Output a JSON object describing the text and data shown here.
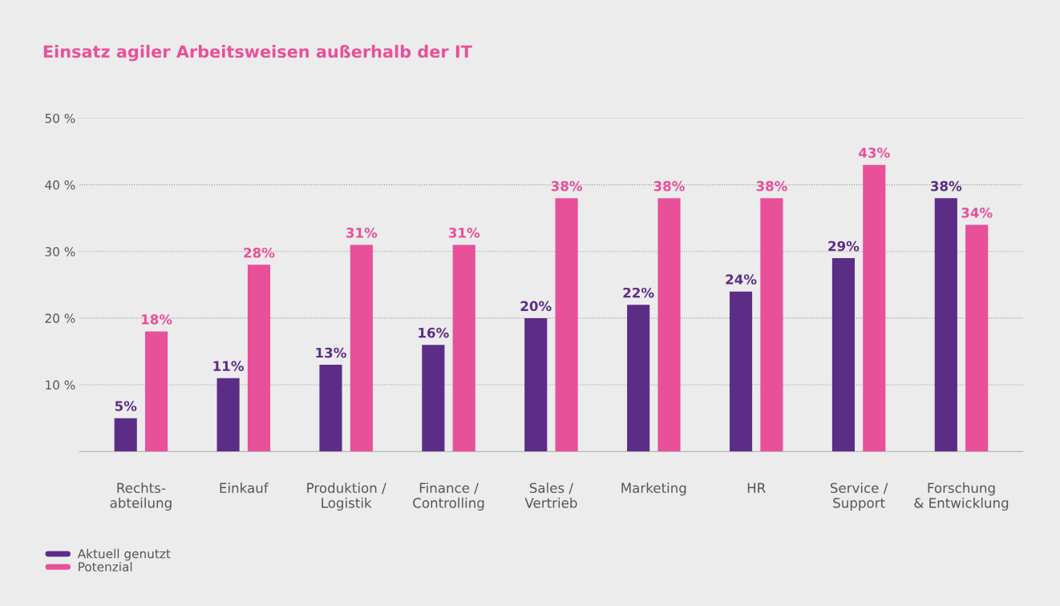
{
  "chart_data": {
    "type": "bar",
    "title": "Einsatz agiler Arbeitsweisen außerhalb der IT",
    "categories": [
      "Rechts-\nabteilung",
      "Einkauf",
      "Produktion /\nLogistik",
      "Finance /\nControlling",
      "Sales /\nVertrieb",
      "Marketing",
      "HR",
      "Service /\nSupport",
      "Forschung\n& Entwicklung"
    ],
    "series": [
      {
        "name": "Aktuell genutzt",
        "color": "#5c2d87",
        "values": [
          5,
          11,
          13,
          16,
          20,
          22,
          24,
          29,
          38
        ],
        "value_labels": [
          "5%",
          "11%",
          "13%",
          "16%",
          "20%",
          "22%",
          "24%",
          "29%",
          "38%"
        ]
      },
      {
        "name": "Potenzial",
        "color": "#e8509a",
        "values": [
          18,
          28,
          31,
          31,
          38,
          38,
          38,
          43,
          34
        ],
        "value_labels": [
          "18%",
          "28%",
          "31%",
          "31%",
          "38%",
          "38%",
          "38%",
          "43%",
          "34%"
        ]
      }
    ],
    "ylim": [
      0,
      50
    ],
    "yticks": [
      {
        "value": 10,
        "label": "10 %"
      },
      {
        "value": 20,
        "label": "20 %"
      },
      {
        "value": 30,
        "label": "30 %"
      },
      {
        "value": 40,
        "label": "40 %"
      },
      {
        "value": 50,
        "label": "50 %"
      }
    ],
    "grid": "y",
    "legend": "bottom left"
  }
}
